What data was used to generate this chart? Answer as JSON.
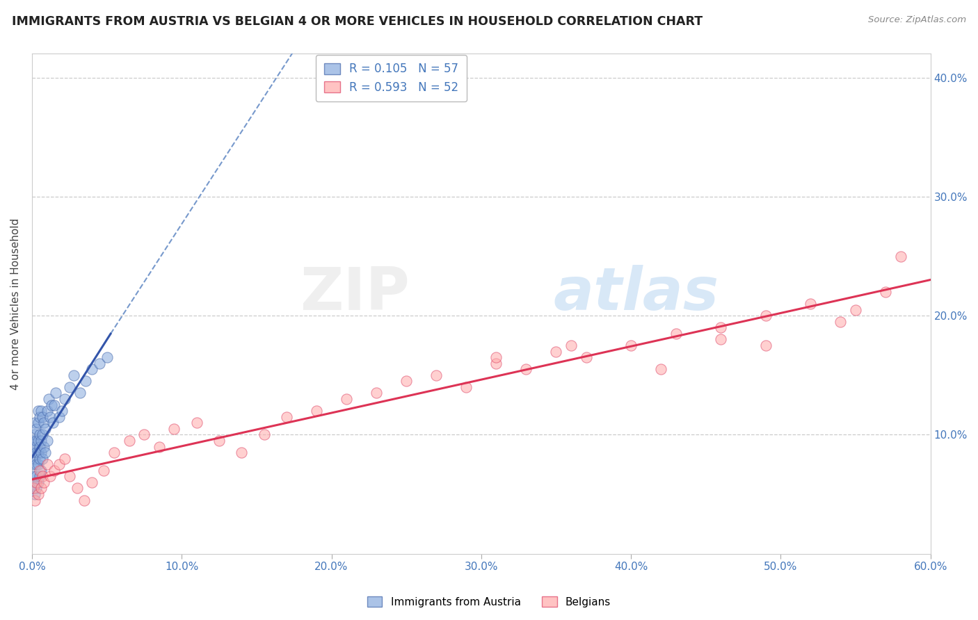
{
  "title": "IMMIGRANTS FROM AUSTRIA VS BELGIAN 4 OR MORE VEHICLES IN HOUSEHOLD CORRELATION CHART",
  "source": "Source: ZipAtlas.com",
  "ylabel": "4 or more Vehicles in Household",
  "xlim": [
    0.0,
    0.6
  ],
  "ylim": [
    0.0,
    0.42
  ],
  "xtick_vals": [
    0.0,
    0.1,
    0.2,
    0.3,
    0.4,
    0.5,
    0.6
  ],
  "ytick_vals": [
    0.0,
    0.1,
    0.2,
    0.3,
    0.4
  ],
  "ytick_labels": [
    "",
    "10.0%",
    "20.0%",
    "30.0%",
    "40.0%"
  ],
  "xtick_labels": [
    "0.0%",
    "10.0%",
    "20.0%",
    "30.0%",
    "40.0%",
    "50.0%",
    "60.0%"
  ],
  "legend1_R": "0.105",
  "legend1_N": "57",
  "legend2_R": "0.593",
  "legend2_N": "52",
  "legend_label1": "Immigrants from Austria",
  "legend_label2": "Belgians",
  "blue_scatter_color": "#88AADD",
  "pink_scatter_color": "#FFAAAA",
  "blue_edge_color": "#4466AA",
  "pink_edge_color": "#DD4466",
  "blue_line_color": "#3355AA",
  "pink_line_color": "#DD3355",
  "blue_dash_color": "#7799CC",
  "watermark": "ZIPatlas",
  "austria_x": [
    0.001,
    0.001,
    0.001,
    0.001,
    0.001,
    0.002,
    0.002,
    0.002,
    0.002,
    0.002,
    0.002,
    0.003,
    0.003,
    0.003,
    0.003,
    0.003,
    0.003,
    0.004,
    0.004,
    0.004,
    0.004,
    0.004,
    0.004,
    0.005,
    0.005,
    0.005,
    0.005,
    0.005,
    0.006,
    0.006,
    0.006,
    0.006,
    0.007,
    0.007,
    0.007,
    0.008,
    0.008,
    0.009,
    0.009,
    0.01,
    0.01,
    0.011,
    0.012,
    0.013,
    0.014,
    0.015,
    0.016,
    0.018,
    0.02,
    0.022,
    0.025,
    0.028,
    0.032,
    0.036,
    0.04,
    0.045,
    0.05
  ],
  "austria_y": [
    0.055,
    0.065,
    0.075,
    0.085,
    0.095,
    0.05,
    0.06,
    0.08,
    0.09,
    0.1,
    0.11,
    0.055,
    0.065,
    0.075,
    0.085,
    0.095,
    0.105,
    0.06,
    0.075,
    0.085,
    0.095,
    0.11,
    0.12,
    0.065,
    0.08,
    0.09,
    0.1,
    0.115,
    0.07,
    0.085,
    0.095,
    0.12,
    0.08,
    0.1,
    0.115,
    0.09,
    0.11,
    0.085,
    0.105,
    0.095,
    0.12,
    0.13,
    0.115,
    0.125,
    0.11,
    0.125,
    0.135,
    0.115,
    0.12,
    0.13,
    0.14,
    0.15,
    0.135,
    0.145,
    0.155,
    0.16,
    0.165
  ],
  "belgian_x": [
    0.001,
    0.002,
    0.003,
    0.004,
    0.005,
    0.006,
    0.007,
    0.008,
    0.01,
    0.012,
    0.015,
    0.018,
    0.022,
    0.025,
    0.03,
    0.035,
    0.04,
    0.048,
    0.055,
    0.065,
    0.075,
    0.085,
    0.095,
    0.11,
    0.125,
    0.14,
    0.155,
    0.17,
    0.19,
    0.21,
    0.23,
    0.25,
    0.27,
    0.29,
    0.31,
    0.33,
    0.35,
    0.37,
    0.4,
    0.43,
    0.46,
    0.49,
    0.52,
    0.55,
    0.57,
    0.49,
    0.42,
    0.36,
    0.31,
    0.58,
    0.54,
    0.46
  ],
  "belgian_y": [
    0.055,
    0.045,
    0.06,
    0.05,
    0.07,
    0.055,
    0.065,
    0.06,
    0.075,
    0.065,
    0.07,
    0.075,
    0.08,
    0.065,
    0.055,
    0.045,
    0.06,
    0.07,
    0.085,
    0.095,
    0.1,
    0.09,
    0.105,
    0.11,
    0.095,
    0.085,
    0.1,
    0.115,
    0.12,
    0.13,
    0.135,
    0.145,
    0.15,
    0.14,
    0.16,
    0.155,
    0.17,
    0.165,
    0.175,
    0.185,
    0.19,
    0.2,
    0.21,
    0.205,
    0.22,
    0.175,
    0.155,
    0.175,
    0.165,
    0.25,
    0.195,
    0.18
  ]
}
